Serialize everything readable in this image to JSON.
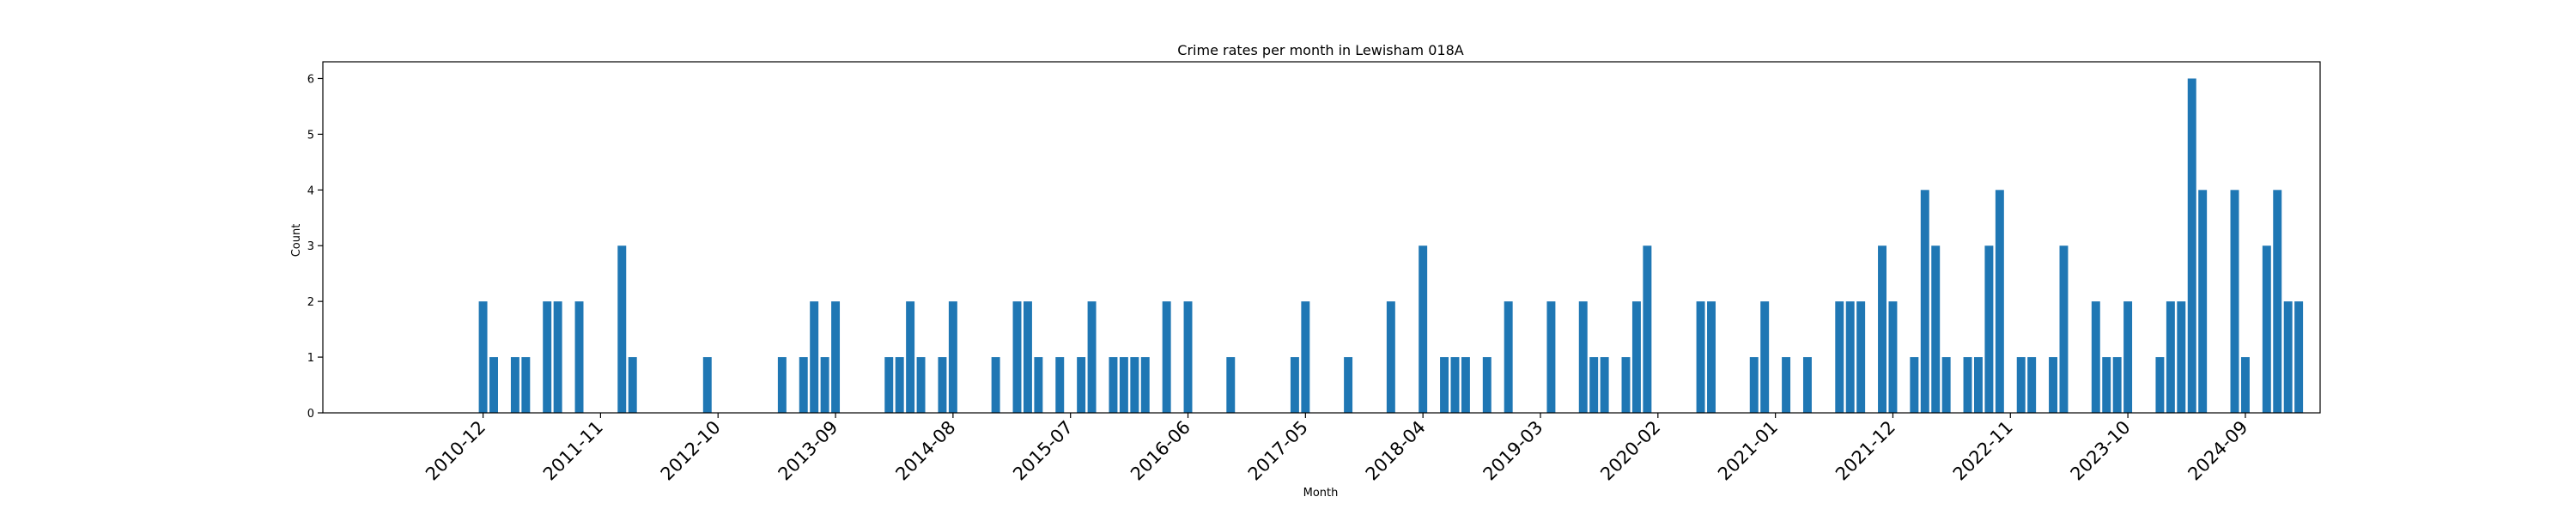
{
  "chart_data": {
    "type": "bar",
    "title": "Crime rates per month in Lewisham 018A",
    "xlabel": "Month",
    "ylabel": "Count",
    "ylim": [
      0,
      6.3
    ],
    "yticks": [
      0,
      1,
      2,
      3,
      4,
      5,
      6
    ],
    "xticks": [
      "2010-12",
      "2011-11",
      "2012-10",
      "2013-09",
      "2014-08",
      "2015-07",
      "2016-06",
      "2017-05",
      "2018-04",
      "2019-03",
      "2020-02",
      "2021-01",
      "2021-12",
      "2022-11",
      "2023-10",
      "2024-09"
    ],
    "bar_color": "#1f77b4",
    "grid": false,
    "x": [
      "2010-12",
      "2011-01",
      "2011-03",
      "2011-04",
      "2011-06",
      "2011-07",
      "2011-09",
      "2012-01",
      "2012-02",
      "2012-09",
      "2013-04",
      "2013-06",
      "2013-07",
      "2013-08",
      "2013-09",
      "2014-02",
      "2014-03",
      "2014-04",
      "2014-05",
      "2014-07",
      "2014-08",
      "2015-00",
      "2015-02",
      "2015-03",
      "2015-04",
      "2015-06",
      "2015-08",
      "2015-09",
      "2015-11",
      "2015-12",
      "2016-01",
      "2016-02",
      "2016-04",
      "2016-06",
      "2016-10",
      "2017-04",
      "2017-05",
      "2017-09",
      "2018-01",
      "2018-04",
      "2018-06",
      "2018-07",
      "2018-08",
      "2018-10",
      "2018-12",
      "2019-04",
      "2019-07",
      "2019-08",
      "2019-09",
      "2019-11",
      "2019-12",
      "2020-01",
      "2020-06",
      "2020-07",
      "2020-11",
      "2020-12",
      "2021-02",
      "2021-04",
      "2021-07",
      "2021-08",
      "2021-09",
      "2021-11",
      "2021-12",
      "2022-02",
      "2022-03",
      "2022-04",
      "2022-05",
      "2022-07",
      "2022-08",
      "2022-09",
      "2022-10",
      "2022-12",
      "2023-01",
      "2023-03",
      "2023-04",
      "2023-07",
      "2023-08",
      "2023-09",
      "2023-10",
      "2024-01",
      "2024-02",
      "2024-03",
      "2024-04",
      "2024-05",
      "2024-08",
      "2024-09",
      "2024-11",
      "2024-12",
      "2025-01",
      "2025-02"
    ],
    "values": [
      2,
      1,
      1,
      1,
      2,
      2,
      2,
      3,
      1,
      1,
      1,
      1,
      2,
      1,
      2,
      1,
      1,
      2,
      1,
      1,
      2,
      1,
      2,
      2,
      1,
      1,
      1,
      2,
      1,
      1,
      1,
      1,
      2,
      2,
      1,
      1,
      2,
      1,
      2,
      3,
      1,
      1,
      1,
      1,
      2,
      2,
      2,
      1,
      1,
      1,
      2,
      3,
      2,
      2,
      1,
      2,
      1,
      1,
      2,
      2,
      2,
      3,
      2,
      1,
      4,
      3,
      1,
      1,
      1,
      3,
      4,
      1,
      1,
      1,
      3,
      2,
      1,
      1,
      2,
      1,
      2,
      2,
      6,
      4,
      4,
      1,
      3,
      4,
      2,
      2
    ]
  }
}
